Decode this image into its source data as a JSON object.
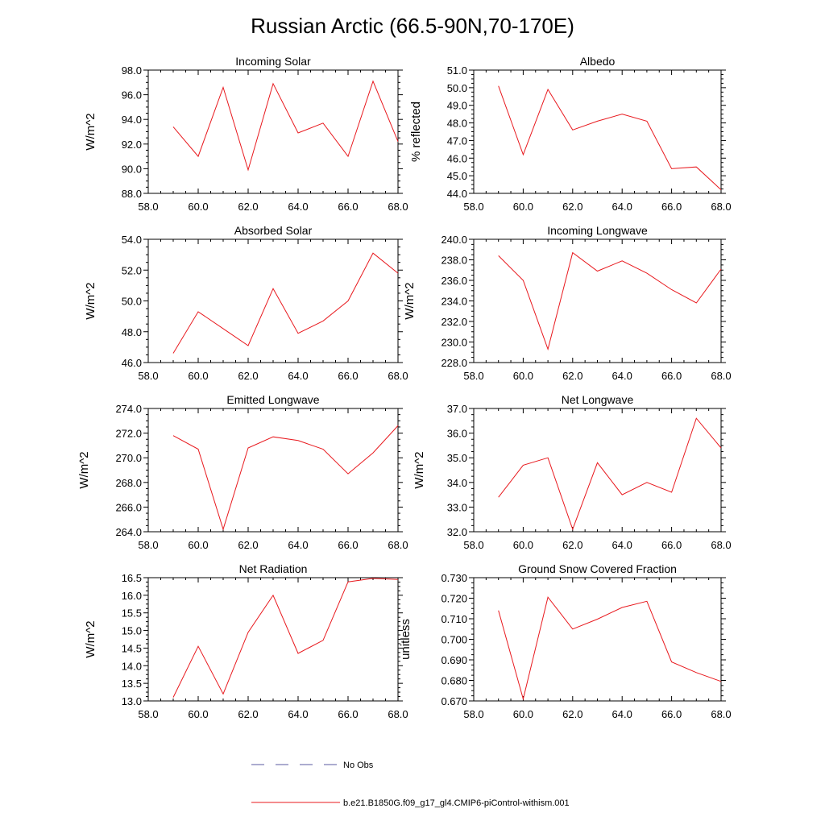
{
  "page": {
    "title": "Russian Arctic (66.5-90N,70-170E)"
  },
  "legend": {
    "items": [
      {
        "label": "No Obs",
        "color": "#5a5aa0",
        "style": "dashed"
      },
      {
        "label": "b.e21.B1850G.f09_g17_gl4.CMIP6-piControl-withism.001",
        "color": "#e8191e",
        "style": "solid"
      }
    ]
  },
  "chart_data": [
    {
      "type": "line",
      "title": "Incoming Solar",
      "ylabel": "W/m^2",
      "x": [
        59,
        60,
        61,
        62,
        63,
        64,
        65,
        66,
        67,
        68
      ],
      "xlim": [
        58,
        68
      ],
      "xticks": [
        "58.0",
        "60.0",
        "62.0",
        "64.0",
        "66.0",
        "68.0"
      ],
      "ylim": [
        88,
        98
      ],
      "yticks": [
        "88.0",
        "90.0",
        "92.0",
        "94.0",
        "96.0",
        "98.0"
      ],
      "series": [
        {
          "name": "b.e21.B1850G.f09_g17_gl4.CMIP6-piControl-withism.001",
          "values": [
            93.4,
            91.0,
            96.6,
            89.9,
            96.9,
            92.9,
            93.7,
            91.0,
            97.1,
            92.2
          ]
        }
      ]
    },
    {
      "type": "line",
      "title": "Albedo",
      "ylabel": "% reflected",
      "x": [
        59,
        60,
        61,
        62,
        63,
        64,
        65,
        66,
        67,
        68
      ],
      "xlim": [
        58,
        68
      ],
      "xticks": [
        "58.0",
        "60.0",
        "62.0",
        "64.0",
        "66.0",
        "68.0"
      ],
      "ylim": [
        44,
        51
      ],
      "yticks": [
        "44.0",
        "45.0",
        "46.0",
        "47.0",
        "48.0",
        "49.0",
        "50.0",
        "51.0"
      ],
      "series": [
        {
          "name": "b.e21.B1850G.f09_g17_gl4.CMIP6-piControl-withism.001",
          "values": [
            50.1,
            46.2,
            49.9,
            47.6,
            48.1,
            48.5,
            48.1,
            45.4,
            45.5,
            44.2
          ]
        }
      ]
    },
    {
      "type": "line",
      "title": "Absorbed Solar",
      "ylabel": "W/m^2",
      "x": [
        59,
        60,
        61,
        62,
        63,
        64,
        65,
        66,
        67,
        68
      ],
      "xlim": [
        58,
        68
      ],
      "xticks": [
        "58.0",
        "60.0",
        "62.0",
        "64.0",
        "66.0",
        "68.0"
      ],
      "ylim": [
        46,
        54
      ],
      "yticks": [
        "46.0",
        "48.0",
        "50.0",
        "52.0",
        "54.0"
      ],
      "series": [
        {
          "name": "b.e21.B1850G.f09_g17_gl4.CMIP6-piControl-withism.001",
          "values": [
            46.6,
            49.3,
            48.2,
            47.1,
            50.8,
            47.9,
            48.7,
            50.0,
            53.1,
            51.8
          ]
        }
      ]
    },
    {
      "type": "line",
      "title": "Incoming Longwave",
      "ylabel": "W/m^2",
      "x": [
        59,
        60,
        61,
        62,
        63,
        64,
        65,
        66,
        67,
        68
      ],
      "xlim": [
        58,
        68
      ],
      "xticks": [
        "58.0",
        "60.0",
        "62.0",
        "64.0",
        "66.0",
        "68.0"
      ],
      "ylim": [
        228,
        240
      ],
      "yticks": [
        "228.0",
        "230.0",
        "232.0",
        "234.0",
        "236.0",
        "238.0",
        "240.0"
      ],
      "series": [
        {
          "name": "b.e21.B1850G.f09_g17_gl4.CMIP6-piControl-withism.001",
          "values": [
            238.4,
            236.0,
            229.3,
            238.7,
            236.9,
            237.9,
            236.7,
            235.1,
            233.8,
            237.1
          ]
        }
      ]
    },
    {
      "type": "line",
      "title": "Emitted Longwave",
      "ylabel": "W/m^2",
      "x": [
        59,
        60,
        61,
        62,
        63,
        64,
        65,
        66,
        67,
        68
      ],
      "xlim": [
        58,
        68
      ],
      "xticks": [
        "58.0",
        "60.0",
        "62.0",
        "64.0",
        "66.0",
        "68.0"
      ],
      "ylim": [
        264,
        274
      ],
      "yticks": [
        "264.0",
        "266.0",
        "268.0",
        "270.0",
        "272.0",
        "274.0"
      ],
      "series": [
        {
          "name": "b.e21.B1850G.f09_g17_gl4.CMIP6-piControl-withism.001",
          "values": [
            271.8,
            270.7,
            264.2,
            270.8,
            271.7,
            271.4,
            270.7,
            268.7,
            270.4,
            272.6
          ]
        }
      ]
    },
    {
      "type": "line",
      "title": "Net Longwave",
      "ylabel": "W/m^2",
      "x": [
        59,
        60,
        61,
        62,
        63,
        64,
        65,
        66,
        67,
        68
      ],
      "xlim": [
        58,
        68
      ],
      "xticks": [
        "58.0",
        "60.0",
        "62.0",
        "64.0",
        "66.0",
        "68.0"
      ],
      "ylim": [
        32,
        37
      ],
      "yticks": [
        "32.0",
        "33.0",
        "34.0",
        "35.0",
        "36.0",
        "37.0"
      ],
      "series": [
        {
          "name": "b.e21.B1850G.f09_g17_gl4.CMIP6-piControl-withism.001",
          "values": [
            33.4,
            34.7,
            35.0,
            32.1,
            34.8,
            33.5,
            34.0,
            33.6,
            36.6,
            35.4
          ]
        }
      ]
    },
    {
      "type": "line",
      "title": "Net Radiation",
      "ylabel": "W/m^2",
      "x": [
        59,
        60,
        61,
        62,
        63,
        64,
        65,
        66,
        67,
        68
      ],
      "xlim": [
        58,
        68
      ],
      "xticks": [
        "58.0",
        "60.0",
        "62.0",
        "64.0",
        "66.0",
        "68.0"
      ],
      "ylim": [
        13,
        16.5
      ],
      "yticks": [
        "13.0",
        "13.5",
        "14.0",
        "14.5",
        "15.0",
        "15.5",
        "16.0",
        "16.5"
      ],
      "series": [
        {
          "name": "b.e21.B1850G.f09_g17_gl4.CMIP6-piControl-withism.001",
          "values": [
            13.1,
            14.55,
            13.2,
            14.95,
            16.0,
            14.35,
            14.72,
            16.38,
            16.48,
            16.45
          ]
        }
      ]
    },
    {
      "type": "line",
      "title": "Ground Snow Covered Fraction",
      "ylabel": "unitless",
      "x": [
        59,
        60,
        61,
        62,
        63,
        64,
        65,
        66,
        67,
        68
      ],
      "xlim": [
        58,
        68
      ],
      "xticks": [
        "58.0",
        "60.0",
        "62.0",
        "64.0",
        "66.0",
        "68.0"
      ],
      "ylim": [
        0.67,
        0.73
      ],
      "yticks": [
        "0.670",
        "0.680",
        "0.690",
        "0.700",
        "0.710",
        "0.720",
        "0.730"
      ],
      "series": [
        {
          "name": "b.e21.B1850G.f09_g17_gl4.CMIP6-piControl-withism.001",
          "values": [
            0.714,
            0.671,
            0.7205,
            0.705,
            0.7098,
            0.7155,
            0.7185,
            0.689,
            0.6838,
            0.6795
          ]
        }
      ]
    }
  ]
}
